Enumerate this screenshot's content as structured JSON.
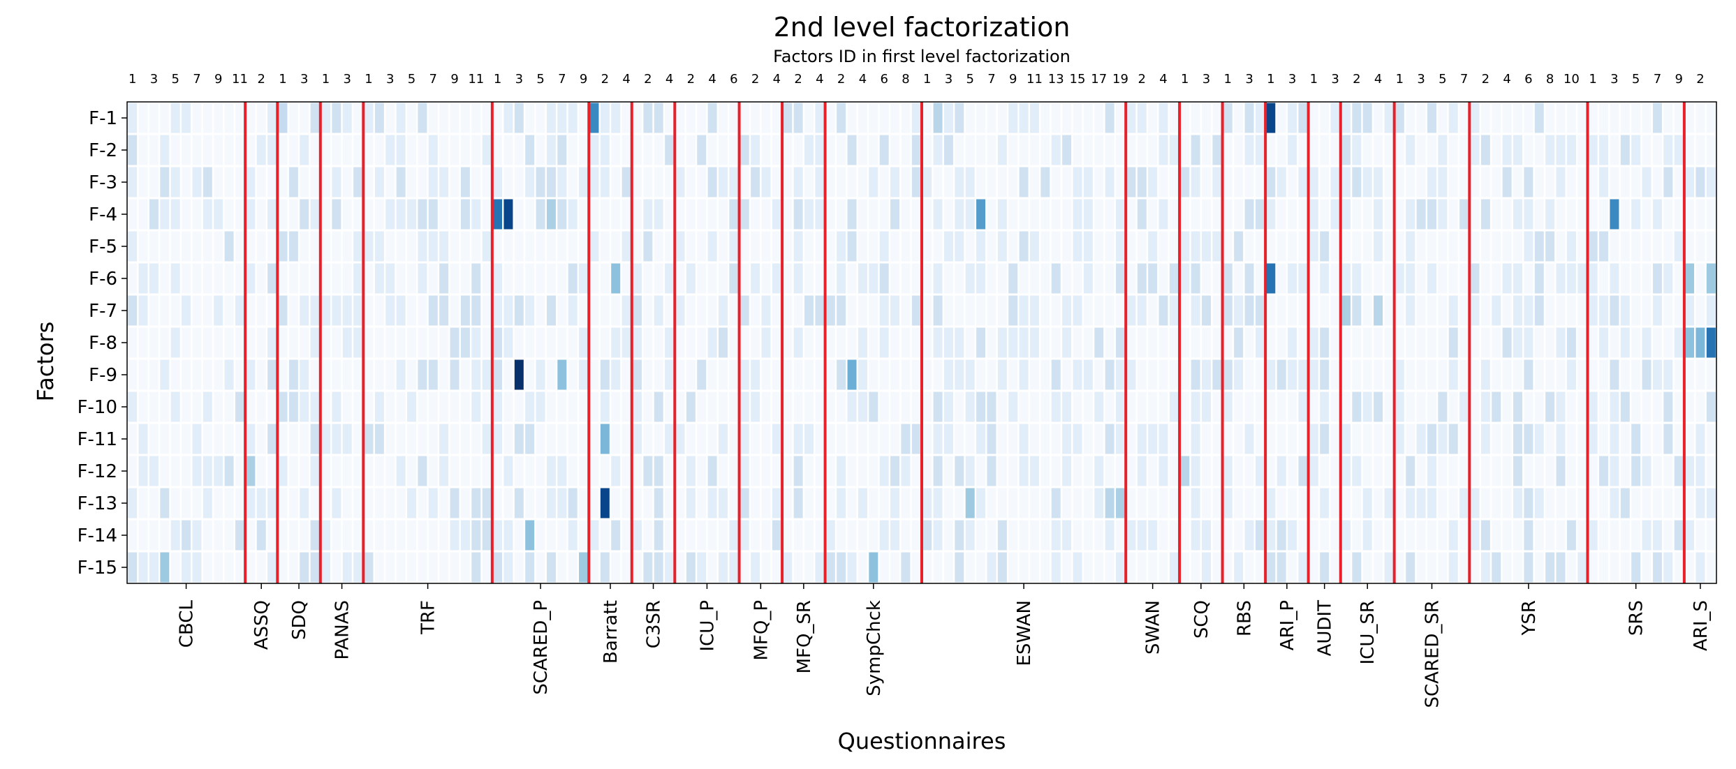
{
  "chart_data": {
    "type": "heatmap",
    "title": "2nd level factorization",
    "top_axis_label": "Factors ID in first level factorization",
    "xlabel": "Questionnaires",
    "ylabel": "Factors",
    "rows": [
      "F-1",
      "F-2",
      "F-3",
      "F-4",
      "F-5",
      "F-6",
      "F-7",
      "F-8",
      "F-9",
      "F-10",
      "F-11",
      "F-12",
      "F-13",
      "F-14",
      "F-15"
    ],
    "colormap": "Blues",
    "grid": false,
    "separator_color": "#e8202a",
    "questionnaires": [
      {
        "name": "CBCL",
        "n": 11,
        "ticks": [
          "1",
          "3",
          "5",
          "7",
          "9",
          "11"
        ]
      },
      {
        "name": "ASSQ",
        "n": 3,
        "ticks": [
          "2"
        ]
      },
      {
        "name": "SDQ",
        "n": 4,
        "ticks": [
          "1",
          "3"
        ]
      },
      {
        "name": "PANAS",
        "n": 4,
        "ticks": [
          "1",
          "3"
        ]
      },
      {
        "name": "TRF",
        "n": 12,
        "ticks": [
          "1",
          "3",
          "5",
          "7",
          "9",
          "11"
        ]
      },
      {
        "name": "SCARED_P",
        "n": 9,
        "ticks": [
          "1",
          "3",
          "5",
          "7",
          "9"
        ]
      },
      {
        "name": "Barratt",
        "n": 4,
        "ticks": [
          "2",
          "4"
        ]
      },
      {
        "name": "C3SR",
        "n": 4,
        "ticks": [
          "2",
          "4"
        ]
      },
      {
        "name": "ICU_P",
        "n": 6,
        "ticks": [
          "2",
          "4",
          "6"
        ]
      },
      {
        "name": "MFQ_P",
        "n": 4,
        "ticks": [
          "2",
          "4"
        ]
      },
      {
        "name": "MFQ_SR",
        "n": 4,
        "ticks": [
          "2",
          "4"
        ]
      },
      {
        "name": "SympChck",
        "n": 9,
        "ticks": [
          "2",
          "4",
          "6",
          "8"
        ]
      },
      {
        "name": "ESWAN",
        "n": 19,
        "ticks": [
          "1",
          "3",
          "5",
          "7",
          "9",
          "11",
          "13",
          "15",
          "17",
          "19"
        ]
      },
      {
        "name": "SWAN",
        "n": 5,
        "ticks": [
          "2",
          "4"
        ]
      },
      {
        "name": "SCQ",
        "n": 4,
        "ticks": [
          "1",
          "3"
        ]
      },
      {
        "name": "RBS",
        "n": 4,
        "ticks": [
          "1",
          "3"
        ]
      },
      {
        "name": "ARI_P",
        "n": 4,
        "ticks": [
          "1",
          "3"
        ]
      },
      {
        "name": "AUDIT",
        "n": 3,
        "ticks": [
          "1",
          "3"
        ]
      },
      {
        "name": "ICU_SR",
        "n": 5,
        "ticks": [
          "2",
          "4"
        ]
      },
      {
        "name": "SCARED_SR",
        "n": 7,
        "ticks": [
          "1",
          "3",
          "5",
          "7"
        ]
      },
      {
        "name": "YSR",
        "n": 11,
        "ticks": [
          "2",
          "4",
          "6",
          "8",
          "10"
        ]
      },
      {
        "name": "SRS",
        "n": 9,
        "ticks": [
          "1",
          "3",
          "5",
          "7",
          "9"
        ]
      },
      {
        "name": "ARI_S",
        "n": 3,
        "ticks": [
          "2"
        ]
      }
    ],
    "strong_cells": [
      {
        "row": "F-1",
        "q": "Barratt",
        "item": 1,
        "v": 0.8
      },
      {
        "row": "F-1",
        "q": "ARI_P",
        "item": 1,
        "v": 0.95
      },
      {
        "row": "F-1",
        "q": "ESWAN",
        "item": 2,
        "v": 0.45
      },
      {
        "row": "F-1",
        "q": "SDQ",
        "item": 1,
        "v": 0.4
      },
      {
        "row": "F-4",
        "q": "SCARED_P",
        "item": 1,
        "v": 0.85
      },
      {
        "row": "F-4",
        "q": "SCARED_P",
        "item": 2,
        "v": 0.95
      },
      {
        "row": "F-4",
        "q": "ESWAN",
        "item": 6,
        "v": 0.75
      },
      {
        "row": "F-4",
        "q": "SRS",
        "item": 3,
        "v": 0.8
      },
      {
        "row": "F-4",
        "q": "SCARED_P",
        "item": 6,
        "v": 0.5
      },
      {
        "row": "F-6",
        "q": "Barratt",
        "item": 3,
        "v": 0.6
      },
      {
        "row": "F-6",
        "q": "ARI_P",
        "item": 1,
        "v": 0.85
      },
      {
        "row": "F-6",
        "q": "ARI_S",
        "item": 1,
        "v": 0.55
      },
      {
        "row": "F-6",
        "q": "ARI_S",
        "item": 3,
        "v": 0.55
      },
      {
        "row": "F-7",
        "q": "ICU_SR",
        "item": 1,
        "v": 0.5
      },
      {
        "row": "F-7",
        "q": "ICU_SR",
        "item": 4,
        "v": 0.45
      },
      {
        "row": "F-8",
        "q": "ARI_S",
        "item": 1,
        "v": 0.6
      },
      {
        "row": "F-8",
        "q": "ARI_S",
        "item": 2,
        "v": 0.65
      },
      {
        "row": "F-8",
        "q": "ARI_S",
        "item": 3,
        "v": 0.85
      },
      {
        "row": "F-9",
        "q": "SCARED_P",
        "item": 3,
        "v": 1.0
      },
      {
        "row": "F-9",
        "q": "SCARED_P",
        "item": 7,
        "v": 0.6
      },
      {
        "row": "F-9",
        "q": "SympChck",
        "item": 3,
        "v": 0.7
      },
      {
        "row": "F-11",
        "q": "Barratt",
        "item": 2,
        "v": 0.65
      },
      {
        "row": "F-12",
        "q": "ASSQ",
        "item": 1,
        "v": 0.5
      },
      {
        "row": "F-12",
        "q": "SCQ",
        "item": 1,
        "v": 0.45
      },
      {
        "row": "F-13",
        "q": "Barratt",
        "item": 2,
        "v": 0.95
      },
      {
        "row": "F-13",
        "q": "ESWAN",
        "item": 5,
        "v": 0.55
      },
      {
        "row": "F-13",
        "q": "ESWAN",
        "item": 18,
        "v": 0.45
      },
      {
        "row": "F-13",
        "q": "ESWAN",
        "item": 19,
        "v": 0.5
      },
      {
        "row": "F-14",
        "q": "SCARED_P",
        "item": 4,
        "v": 0.6
      },
      {
        "row": "F-15",
        "q": "CBCL",
        "item": 4,
        "v": 0.55
      },
      {
        "row": "F-15",
        "q": "SympChck",
        "item": 5,
        "v": 0.6
      },
      {
        "row": "F-15",
        "q": "SCARED_P",
        "item": 9,
        "v": 0.55
      }
    ]
  }
}
